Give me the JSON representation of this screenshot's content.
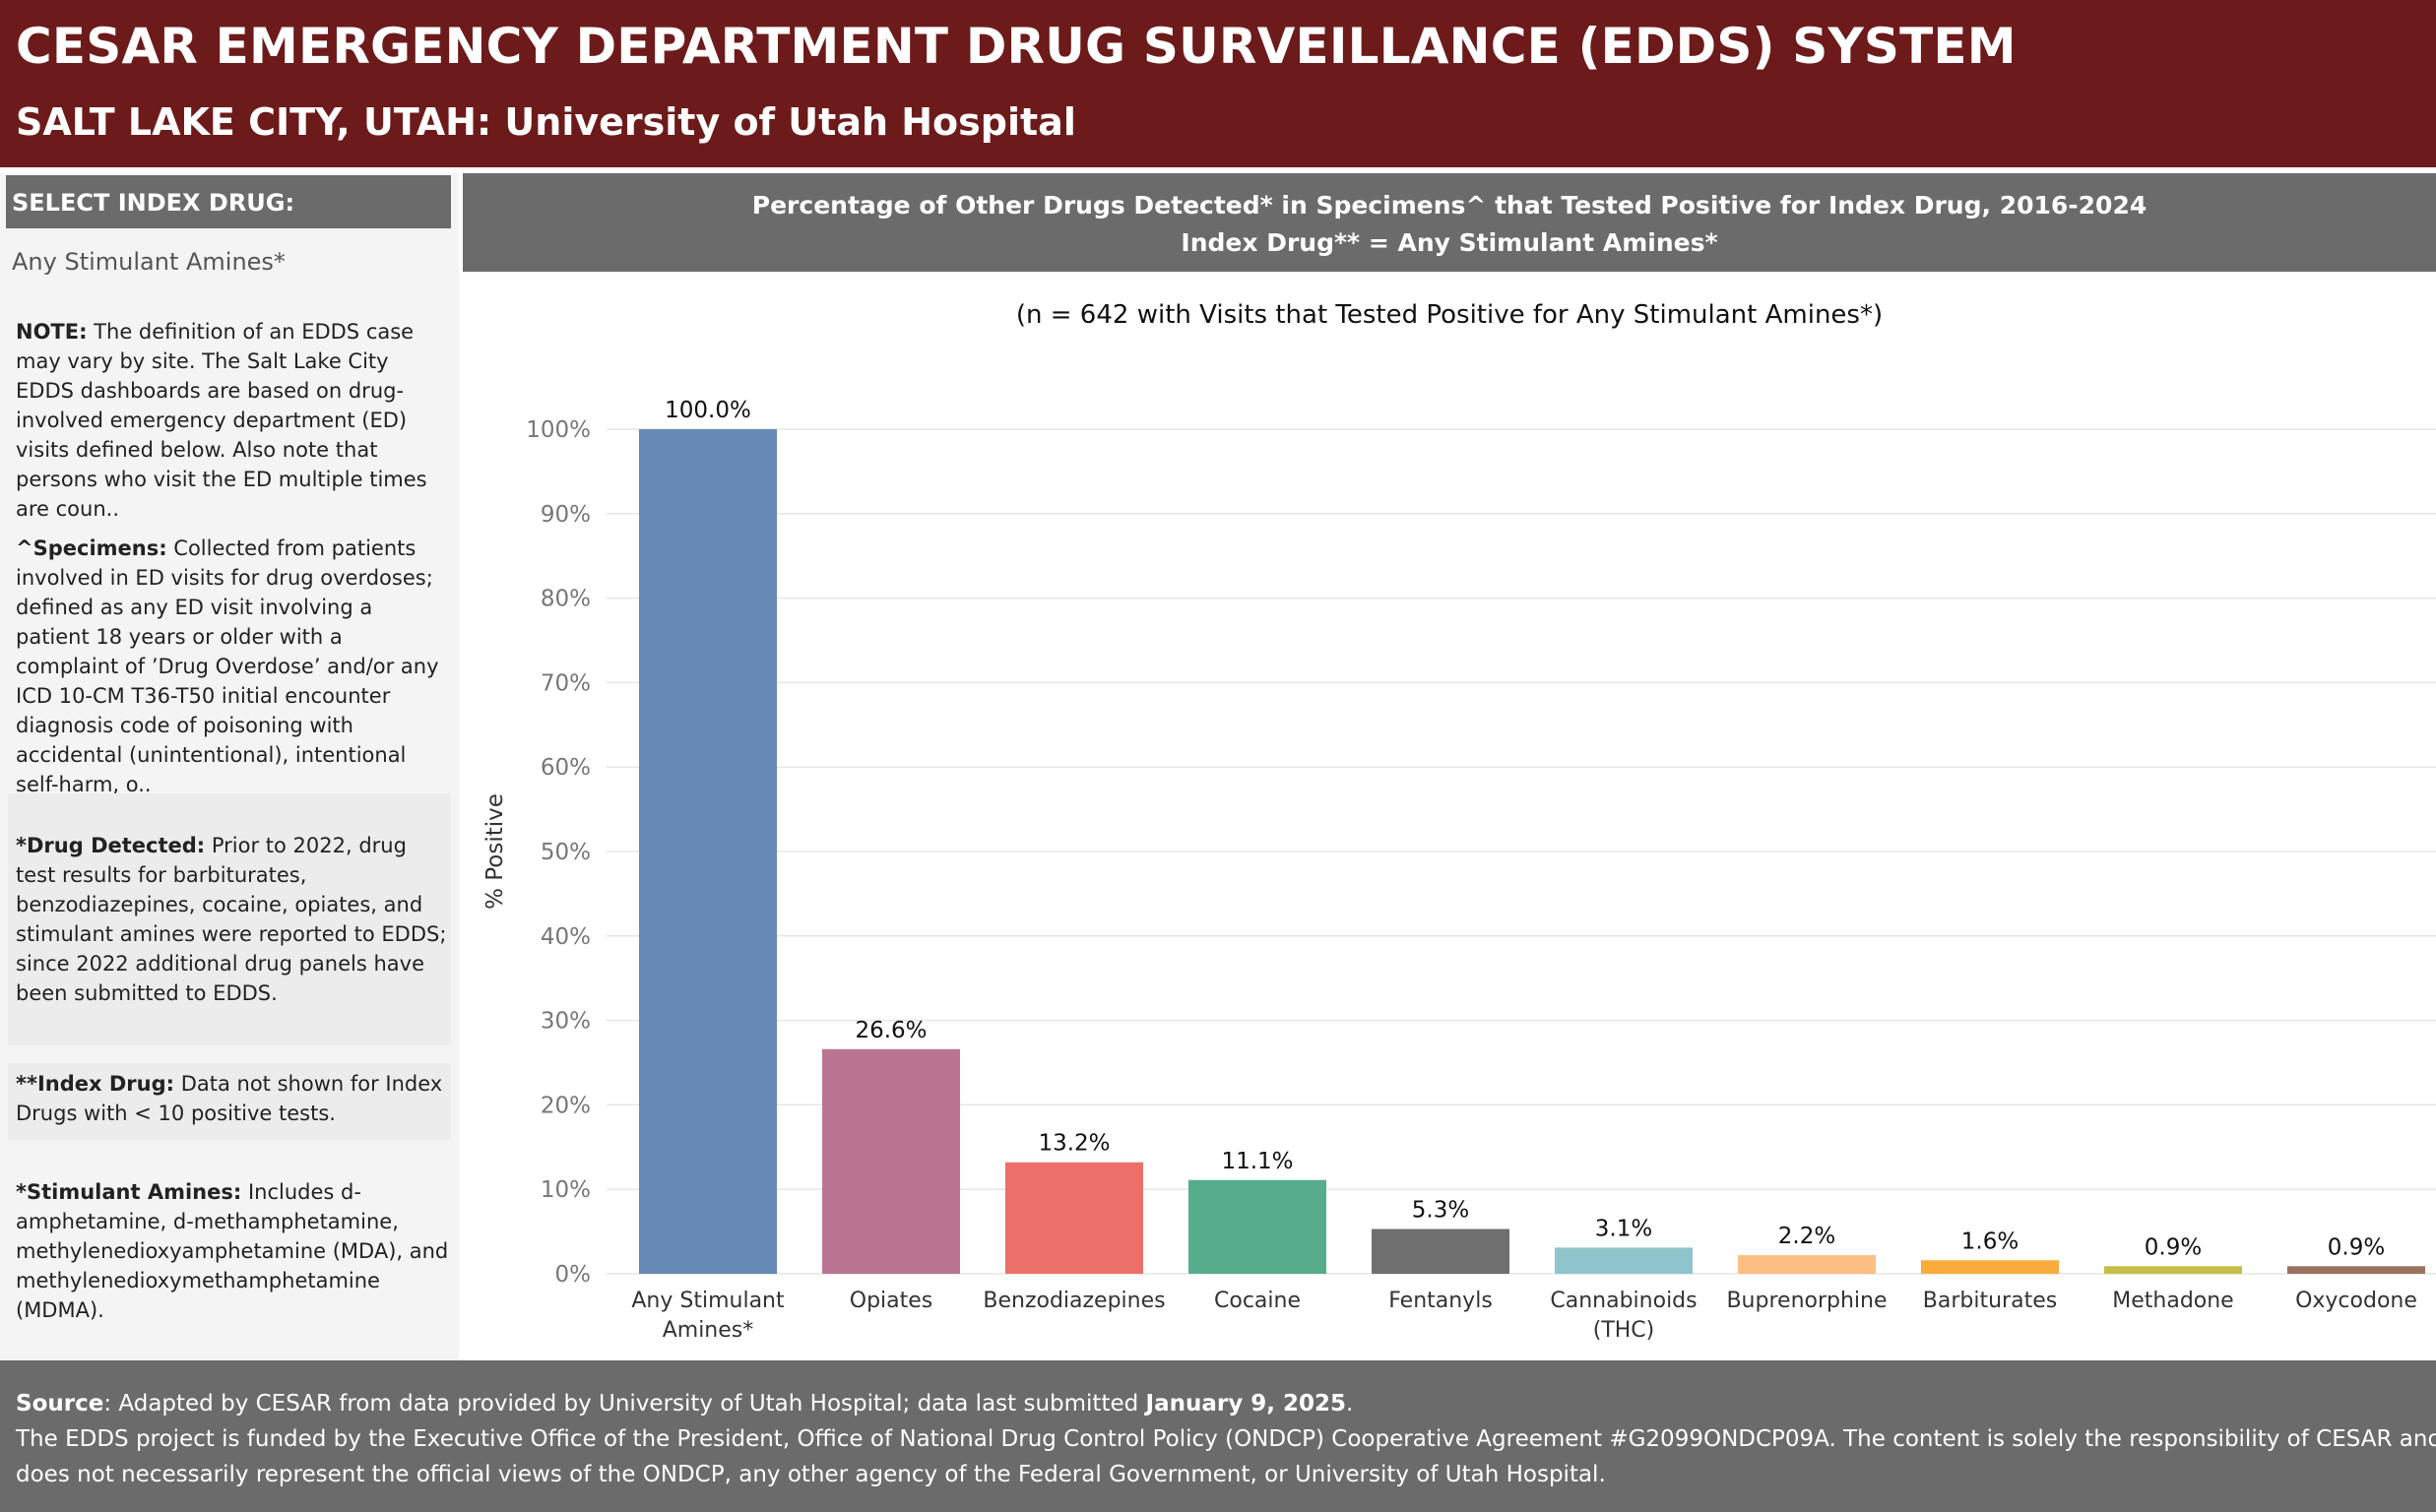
{
  "header": {
    "title": "CESAR EMERGENCY DEPARTMENT DRUG SURVEILLANCE (EDDS) SYSTEM",
    "subtitle": "SALT LAKE CITY, UTAH:  University of Utah Hospital"
  },
  "sidebar": {
    "select_label": "SELECT INDEX DRUG:",
    "select_value": "Any Stimulant Amines*",
    "notes": [
      {
        "heading": "NOTE:",
        "text": " The definition of an EDDS case may vary by site. The Salt Lake City EDDS dashboards are based on drug-involved emergency department (ED) visits defined below. Also note that persons who visit the ED multiple times are coun.."
      },
      {
        "heading": "^Specimens:",
        "text": " Collected from patients involved in ED visits for drug overdoses; defined as any ED visit involving a patient 18 years or older with a complaint of ’Drug Overdose’ and/or any ICD 10-CM T36-T50 initial encounter diagnosis code of poisoning with accidental (unintentional), intentional self-harm, o.."
      },
      {
        "heading": "*Drug Detected:",
        "text": " Prior to 2022, drug test results for barbiturates, benzodiazepines, cocaine, opiates, and stimulant amines were reported to EDDS; since 2022 additional drug panels have been submitted to EDDS."
      },
      {
        "heading": "**Index Drug:",
        "text": " Data not shown for Index Drugs with < 10 positive tests."
      },
      {
        "heading": "*Stimulant Amines:",
        "text": " Includes d-amphetamine, d-methamphetamine, methylenedioxyamphetamine (MDA), and methylenedioxymethamphetamine (MDMA)."
      }
    ]
  },
  "chart_header": {
    "line1": "Percentage of Other Drugs Detected* in Specimens^ that Tested Positive for Index Drug, 2016-2024",
    "line2": "Index Drug** = Any Stimulant Amines*"
  },
  "n_note": "(n = 642 with Visits that Tested Positive for Any Stimulant Amines*)",
  "chart_data": {
    "type": "bar",
    "ylabel": "% Positive",
    "ylim": [
      0,
      100
    ],
    "yticks": [
      "0%",
      "10%",
      "20%",
      "30%",
      "40%",
      "50%",
      "60%",
      "70%",
      "80%",
      "90%",
      "100%"
    ],
    "grid": true,
    "categories": [
      [
        "Any Stimulant",
        "Amines*"
      ],
      [
        "Opiates"
      ],
      [
        "Benzodiazepines"
      ],
      [
        "Cocaine"
      ],
      [
        "Fentanyls"
      ],
      [
        "Cannabinoids",
        "(THC)"
      ],
      [
        "Buprenorphine"
      ],
      [
        "Barbiturates"
      ],
      [
        "Methadone"
      ],
      [
        "Oxycodone"
      ]
    ],
    "values": [
      100.0,
      26.6,
      13.2,
      11.1,
      5.3,
      3.1,
      2.2,
      1.6,
      0.9,
      0.9
    ],
    "labels": [
      "100.0%",
      "26.6%",
      "13.2%",
      "11.1%",
      "5.3%",
      "3.1%",
      "2.2%",
      "1.6%",
      "0.9%",
      "0.9%"
    ],
    "colors": [
      "#6789b5",
      "#bb7593",
      "#ed6f6a",
      "#56ac8b",
      "#6f6f6f",
      "#8ec4cc",
      "#fbbf84",
      "#f9ac3c",
      "#c6bd45",
      "#9b7260"
    ]
  },
  "footer": {
    "source_label": "Source",
    "source_text": ": Adapted by CESAR from data provided by University of Utah Hospital; data last submitted ",
    "source_date": "January 9, 2025",
    "source_end": ".",
    "funding_line1": "The EDDS project is funded by the Executive Office of the President, Office of National Drug Control Policy (ONDCP) Cooperative Agreement #G2099ONDCP09A. The content is solely the responsibility of CESAR and",
    "funding_line2": "does not necessarily represent the official views of the ONDCP, any other agency of the Federal Government, or University of Utah Hospital."
  }
}
